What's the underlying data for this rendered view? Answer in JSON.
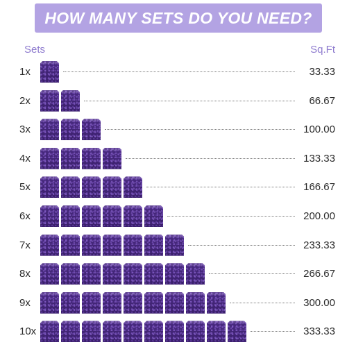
{
  "title": "HOW MANY SETS DO YOU NEED?",
  "headers": {
    "sets": "Sets",
    "sqft": "Sq.Ft"
  },
  "rows": [
    {
      "label": "1x",
      "count": 1,
      "value": "33.33"
    },
    {
      "label": "2x",
      "count": 2,
      "value": "66.67"
    },
    {
      "label": "3x",
      "count": 3,
      "value": "100.00"
    },
    {
      "label": "4x",
      "count": 4,
      "value": "133.33"
    },
    {
      "label": "5x",
      "count": 5,
      "value": "166.67"
    },
    {
      "label": "6x",
      "count": 6,
      "value": "200.00"
    },
    {
      "label": "7x",
      "count": 7,
      "value": "233.33"
    },
    {
      "label": "8x",
      "count": 8,
      "value": "266.67"
    },
    {
      "label": "9x",
      "count": 9,
      "value": "300.00"
    },
    {
      "label": "10x",
      "count": 10,
      "value": "333.33"
    }
  ],
  "colors": {
    "banner": "#b3a3e3",
    "header_text": "#8f7ccf",
    "tile": "#3f2373"
  }
}
